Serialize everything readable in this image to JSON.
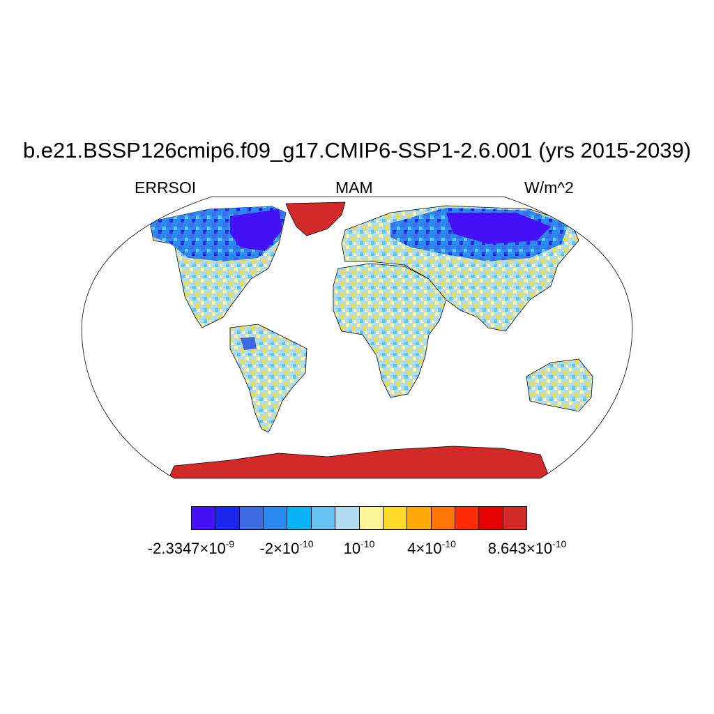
{
  "title": "b.e21.BSSP126cmip6.f09_g17.CMIP6-SSP1-2.6.001 (yrs 2015-2039)",
  "subtitles": {
    "left": "ERRSOI",
    "center": "MAM",
    "right": "W/m^2"
  },
  "colorbar": {
    "colors": [
      "#4410f5",
      "#1a28ee",
      "#3c6ae3",
      "#2a8af2",
      "#0ab3f5",
      "#63c2ef",
      "#b1dcf0",
      "#fff59a",
      "#ffd92a",
      "#ffa806",
      "#ff7605",
      "#ff2c05",
      "#e40202",
      "#d22a29"
    ],
    "labels": [
      {
        "mantissa": "-2.3347×10",
        "exp": "-9"
      },
      {
        "mantissa": "-2×10",
        "exp": "-10"
      },
      {
        "mantissa": "10",
        "exp": "-10"
      },
      {
        "mantissa": "4×10",
        "exp": "-10"
      },
      {
        "mantissa": "8.643×10",
        "exp": "-10"
      }
    ]
  },
  "colors": {
    "ocean": "#ffffff",
    "outline": "#000000",
    "antarctica": "#d22a29",
    "greenland": "#d22a29"
  }
}
